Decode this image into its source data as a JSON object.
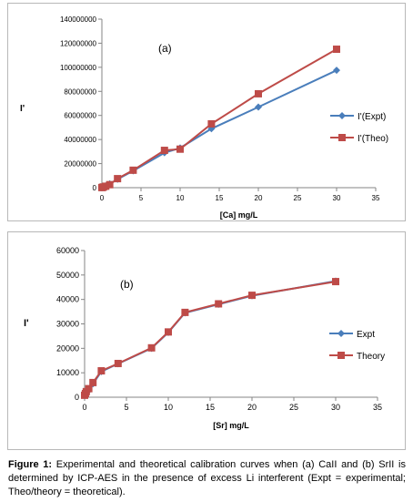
{
  "chart_data": [
    {
      "type": "line",
      "panel_label": "(a)",
      "xlabel": "[Ca] mg/L",
      "ylabel": "I'",
      "xlim": [
        0,
        35
      ],
      "ylim": [
        0,
        140000000
      ],
      "x_ticks": [
        0,
        5,
        10,
        15,
        20,
        25,
        30,
        35
      ],
      "y_ticks": [
        0,
        20000000,
        40000000,
        60000000,
        80000000,
        100000000,
        120000000,
        140000000
      ],
      "grid": false,
      "legend_position": "right",
      "series": [
        {
          "name": "I'(Expt)",
          "color": "#4a7ebb",
          "marker": "diamond",
          "x": [
            0,
            0.1,
            0.2,
            0.5,
            1,
            2,
            4,
            8,
            10,
            14,
            20,
            30
          ],
          "y": [
            100000,
            400000,
            800000,
            1500000,
            3200000,
            7000000,
            14000000,
            29000000,
            33000000,
            49000000,
            67000000,
            97500000
          ]
        },
        {
          "name": "I'(Theo)",
          "color": "#be4b48",
          "marker": "square",
          "x": [
            0,
            0.1,
            0.2,
            0.5,
            1,
            2,
            4,
            8,
            10,
            14,
            20,
            30
          ],
          "y": [
            100000,
            300000,
            600000,
            1200000,
            2500000,
            7500000,
            14500000,
            31000000,
            32000000,
            53000000,
            78000000,
            115000000
          ]
        }
      ]
    },
    {
      "type": "line",
      "panel_label": "(b)",
      "xlabel": "[Sr] mg/L",
      "ylabel": "I'",
      "xlim": [
        0,
        35
      ],
      "ylim": [
        0,
        60000
      ],
      "x_ticks": [
        0,
        5,
        10,
        15,
        20,
        25,
        30,
        35
      ],
      "y_ticks": [
        0,
        10000,
        20000,
        30000,
        40000,
        50000,
        60000
      ],
      "grid": false,
      "legend_position": "right",
      "series": [
        {
          "name": "Expt",
          "color": "#4a7ebb",
          "marker": "diamond",
          "x": [
            0,
            0.1,
            0.2,
            0.5,
            1,
            2,
            4,
            8,
            10,
            12,
            16,
            20,
            30
          ],
          "y": [
            700,
            1200,
            1800,
            2800,
            5500,
            10500,
            13700,
            20000,
            26500,
            34500,
            38000,
            41500,
            47500
          ]
        },
        {
          "name": "Theory",
          "color": "#be4b48",
          "marker": "square",
          "x": [
            0,
            0.1,
            0.2,
            0.5,
            1,
            2,
            4,
            8,
            10,
            12,
            16,
            20,
            30
          ],
          "y": [
            800,
            1500,
            2300,
            3500,
            6000,
            10800,
            13800,
            20200,
            26700,
            34700,
            38200,
            41700,
            47300
          ]
        }
      ]
    }
  ],
  "caption": {
    "lead": "Figure 1:",
    "text": " Experimental and theoretical calibration curves when (a) CaII and (b) SrII is determined by ICP-AES in the presence of excess Li interferent (Expt = experimental; Theo/theory = theoretical)."
  }
}
